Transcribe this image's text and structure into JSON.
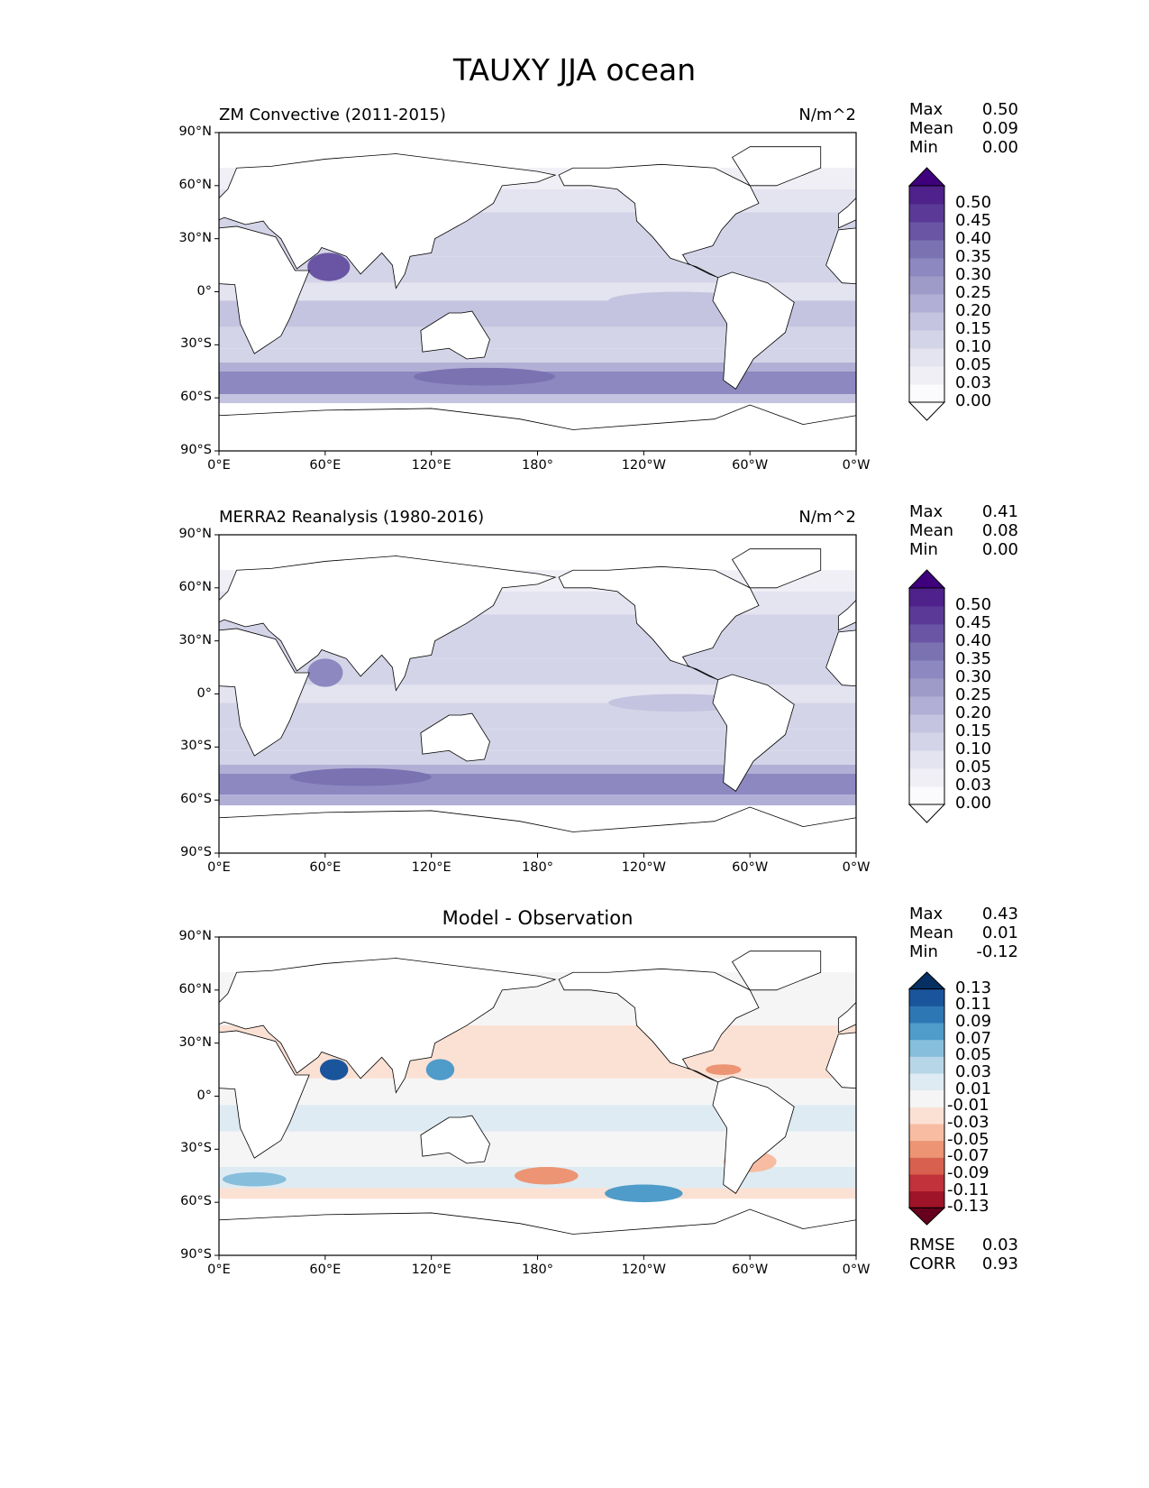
{
  "title": "TAUXY JJA ocean",
  "lon_ticks": [
    "0°E",
    "60°E",
    "120°E",
    "180°",
    "120°W",
    "60°W",
    "0°W"
  ],
  "lat_ticks": [
    "90°N",
    "60°N",
    "30°N",
    "0°",
    "30°S",
    "60°S",
    "90°S"
  ],
  "colormaps": {
    "purples": {
      "ticks": [
        "0.00",
        "0.03",
        "0.05",
        "0.10",
        "0.15",
        "0.20",
        "0.25",
        "0.30",
        "0.35",
        "0.40",
        "0.45",
        "0.50"
      ],
      "bounds": [
        0,
        0.03,
        0.05,
        0.1,
        0.15,
        0.2,
        0.25,
        0.3,
        0.35,
        0.4,
        0.45,
        0.5
      ],
      "under": "#ffffff",
      "colors": [
        "#fbfafd",
        "#f1eff6",
        "#e4e3f0",
        "#d4d4e8",
        "#c4c4e0",
        "#b1afd5",
        "#9e9bc9",
        "#8d88c0",
        "#7b72b2",
        "#6a55a4",
        "#5b3a97",
        "#4f218a"
      ],
      "over": "#3f007d"
    },
    "rdbu": {
      "ticks": [
        "-0.13",
        "-0.11",
        "-0.09",
        "-0.07",
        "-0.05",
        "-0.03",
        "-0.01",
        "0.01",
        "0.03",
        "0.05",
        "0.07",
        "0.09",
        "0.11",
        "0.13"
      ],
      "bounds": [
        -0.13,
        -0.11,
        -0.09,
        -0.07,
        -0.05,
        -0.03,
        -0.01,
        0.01,
        0.03,
        0.05,
        0.07,
        0.09,
        0.11,
        0.13
      ],
      "under": "#67001f",
      "colors": [
        "#9f1428",
        "#c1323a",
        "#d8604e",
        "#ec9473",
        "#f7bca1",
        "#fbe1d4",
        "#f5f5f5",
        "#deebf2",
        "#b7d6e8",
        "#86bedb",
        "#4f9bc9",
        "#2e77b5",
        "#1a559c"
      ],
      "over": "#053061"
    }
  },
  "panels": [
    {
      "left_title": "ZM Convective (2011-2015)",
      "right_title": "N/m^2",
      "stats": [
        [
          "Max",
          "0.50"
        ],
        [
          "Mean",
          "0.09"
        ],
        [
          "Min",
          "0.00"
        ]
      ],
      "cmap": "purples",
      "bands": [
        [
          70,
          58,
          0.04
        ],
        [
          58,
          45,
          0.07
        ],
        [
          45,
          20,
          0.12
        ],
        [
          20,
          5,
          0.12
        ],
        [
          5,
          -5,
          0.06
        ],
        [
          -5,
          -20,
          0.16
        ],
        [
          -20,
          -32,
          0.11
        ],
        [
          -32,
          -40,
          0.13
        ],
        [
          -40,
          -45,
          0.22
        ],
        [
          -45,
          -58,
          0.32
        ],
        [
          -58,
          -63,
          0.17
        ]
      ],
      "blobs": [
        [
          62,
          14,
          12,
          8,
          0.42
        ],
        [
          150,
          -48,
          40,
          5,
          0.37
        ],
        [
          260,
          -5,
          40,
          5,
          0.17
        ]
      ]
    },
    {
      "left_title": "MERRA2 Reanalysis (1980-2016)",
      "right_title": "N/m^2",
      "stats": [
        [
          "Max",
          "0.41"
        ],
        [
          "Mean",
          "0.08"
        ],
        [
          "Min",
          "0.00"
        ]
      ],
      "cmap": "purples",
      "bands": [
        [
          70,
          58,
          0.04
        ],
        [
          58,
          45,
          0.07
        ],
        [
          45,
          20,
          0.11
        ],
        [
          20,
          5,
          0.1
        ],
        [
          5,
          -5,
          0.06
        ],
        [
          -5,
          -20,
          0.13
        ],
        [
          -20,
          -32,
          0.1
        ],
        [
          -32,
          -40,
          0.12
        ],
        [
          -40,
          -45,
          0.2
        ],
        [
          -45,
          -57,
          0.3
        ],
        [
          -57,
          -63,
          0.2
        ]
      ],
      "blobs": [
        [
          60,
          12,
          10,
          8,
          0.3
        ],
        [
          80,
          -47,
          40,
          5,
          0.36
        ],
        [
          260,
          -5,
          40,
          5,
          0.16
        ]
      ]
    },
    {
      "left_title": "",
      "center_title": "Model - Observation",
      "right_title": "",
      "stats": [
        [
          "Max",
          "0.43"
        ],
        [
          "Mean",
          "0.01"
        ],
        [
          "Min",
          "-0.12"
        ]
      ],
      "extra_stats": [
        [
          "RMSE",
          "0.03"
        ],
        [
          "CORR",
          "0.93"
        ]
      ],
      "cmap": "rdbu",
      "bands": [
        [
          70,
          60,
          0.0
        ],
        [
          60,
          40,
          0.0
        ],
        [
          40,
          10,
          -0.015
        ],
        [
          10,
          -5,
          0.0
        ],
        [
          -5,
          -20,
          0.015
        ],
        [
          -20,
          -40,
          0.0
        ],
        [
          -40,
          -52,
          0.02
        ],
        [
          -52,
          -58,
          -0.015
        ]
      ],
      "blobs": [
        [
          65,
          15,
          8,
          6,
          0.12
        ],
        [
          125,
          15,
          8,
          6,
          0.08
        ],
        [
          185,
          -45,
          18,
          5,
          -0.07
        ],
        [
          240,
          -55,
          22,
          5,
          0.08
        ],
        [
          300,
          -37,
          15,
          6,
          -0.05
        ],
        [
          20,
          -47,
          18,
          4,
          0.05
        ],
        [
          285,
          15,
          10,
          3,
          -0.06
        ]
      ]
    }
  ]
}
